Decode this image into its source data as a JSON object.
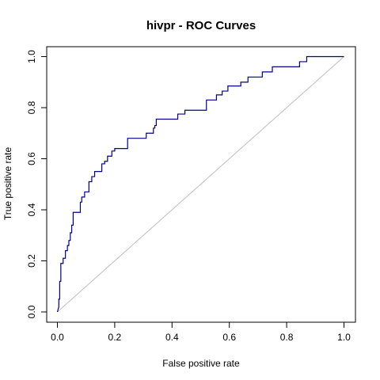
{
  "chart_data": {
    "type": "line",
    "title": "hivpr - ROC Curves",
    "xlabel": "False positive rate",
    "ylabel": "True positive rate",
    "xlim": [
      0,
      1
    ],
    "ylim": [
      0,
      1
    ],
    "x_ticks": [
      "0.0",
      "0.2",
      "0.4",
      "0.6",
      "0.8",
      "1.0"
    ],
    "y_ticks": [
      "0.0",
      "0.2",
      "0.4",
      "0.6",
      "0.8",
      "1.0"
    ],
    "grid": false,
    "legend": "none",
    "diagonal_color": "#bebebe",
    "series": [
      {
        "color": "#00008b",
        "points": [
          [
            0.0,
            0.0
          ],
          [
            0.005,
            0.02
          ],
          [
            0.005,
            0.05
          ],
          [
            0.008,
            0.05
          ],
          [
            0.008,
            0.12
          ],
          [
            0.012,
            0.12
          ],
          [
            0.012,
            0.19
          ],
          [
            0.02,
            0.19
          ],
          [
            0.02,
            0.21
          ],
          [
            0.028,
            0.21
          ],
          [
            0.028,
            0.24
          ],
          [
            0.035,
            0.24
          ],
          [
            0.035,
            0.26
          ],
          [
            0.04,
            0.26
          ],
          [
            0.04,
            0.28
          ],
          [
            0.045,
            0.28
          ],
          [
            0.045,
            0.31
          ],
          [
            0.05,
            0.31
          ],
          [
            0.05,
            0.34
          ],
          [
            0.055,
            0.34
          ],
          [
            0.055,
            0.39
          ],
          [
            0.08,
            0.39
          ],
          [
            0.08,
            0.43
          ],
          [
            0.085,
            0.43
          ],
          [
            0.085,
            0.45
          ],
          [
            0.095,
            0.45
          ],
          [
            0.095,
            0.47
          ],
          [
            0.11,
            0.47
          ],
          [
            0.11,
            0.51
          ],
          [
            0.12,
            0.51
          ],
          [
            0.12,
            0.53
          ],
          [
            0.13,
            0.53
          ],
          [
            0.13,
            0.55
          ],
          [
            0.155,
            0.55
          ],
          [
            0.155,
            0.58
          ],
          [
            0.165,
            0.58
          ],
          [
            0.165,
            0.59
          ],
          [
            0.175,
            0.59
          ],
          [
            0.175,
            0.61
          ],
          [
            0.19,
            0.61
          ],
          [
            0.19,
            0.63
          ],
          [
            0.2,
            0.63
          ],
          [
            0.2,
            0.64
          ],
          [
            0.245,
            0.64
          ],
          [
            0.245,
            0.68
          ],
          [
            0.31,
            0.68
          ],
          [
            0.31,
            0.7
          ],
          [
            0.335,
            0.7
          ],
          [
            0.335,
            0.72
          ],
          [
            0.34,
            0.72
          ],
          [
            0.34,
            0.73
          ],
          [
            0.345,
            0.73
          ],
          [
            0.345,
            0.755
          ],
          [
            0.42,
            0.755
          ],
          [
            0.42,
            0.775
          ],
          [
            0.445,
            0.775
          ],
          [
            0.445,
            0.79
          ],
          [
            0.52,
            0.79
          ],
          [
            0.52,
            0.83
          ],
          [
            0.555,
            0.83
          ],
          [
            0.555,
            0.85
          ],
          [
            0.575,
            0.85
          ],
          [
            0.575,
            0.865
          ],
          [
            0.595,
            0.865
          ],
          [
            0.595,
            0.885
          ],
          [
            0.64,
            0.885
          ],
          [
            0.64,
            0.9
          ],
          [
            0.665,
            0.9
          ],
          [
            0.665,
            0.92
          ],
          [
            0.715,
            0.92
          ],
          [
            0.715,
            0.94
          ],
          [
            0.75,
            0.94
          ],
          [
            0.75,
            0.96
          ],
          [
            0.845,
            0.96
          ],
          [
            0.845,
            0.98
          ],
          [
            0.87,
            0.98
          ],
          [
            0.87,
            1.0
          ],
          [
            1.0,
            1.0
          ]
        ]
      }
    ]
  }
}
